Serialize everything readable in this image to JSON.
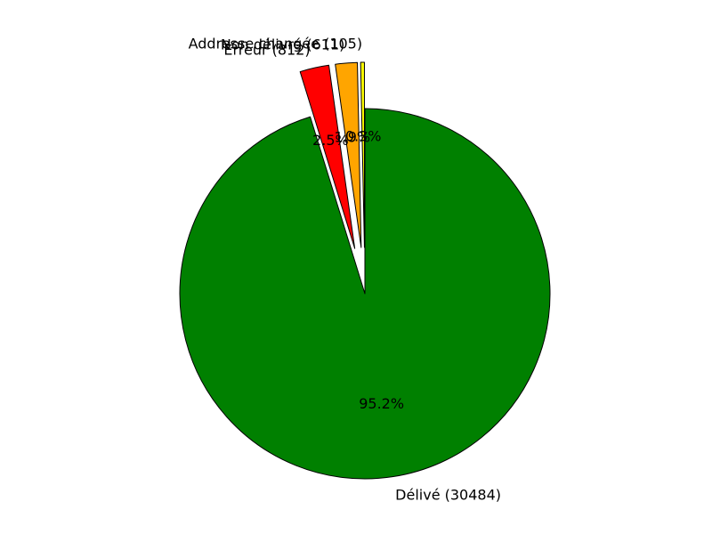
{
  "chart_data": {
    "type": "pie",
    "title": "",
    "start_angle_deg": 90,
    "direction": "clockwise",
    "slices": [
      {
        "category": "Délivé",
        "label": "Délivé (30484)",
        "value": 30484,
        "pct_label": "95.2%",
        "color": "#008000",
        "exploded": false
      },
      {
        "category": "Erreur",
        "label": "Erreur (812)",
        "value": 812,
        "pct_label": "2.5%",
        "color": "#ff0000",
        "exploded": true
      },
      {
        "category": "Non délivré",
        "label": "Non délivré (611)",
        "value": 611,
        "pct_label": "1.9%",
        "color": "#ffa500",
        "exploded": true
      },
      {
        "category": "Addresse changée",
        "label": "Addresse changée (105)",
        "value": 105,
        "pct_label": "0.3%",
        "color": "#ffff00",
        "exploded": true
      }
    ]
  }
}
